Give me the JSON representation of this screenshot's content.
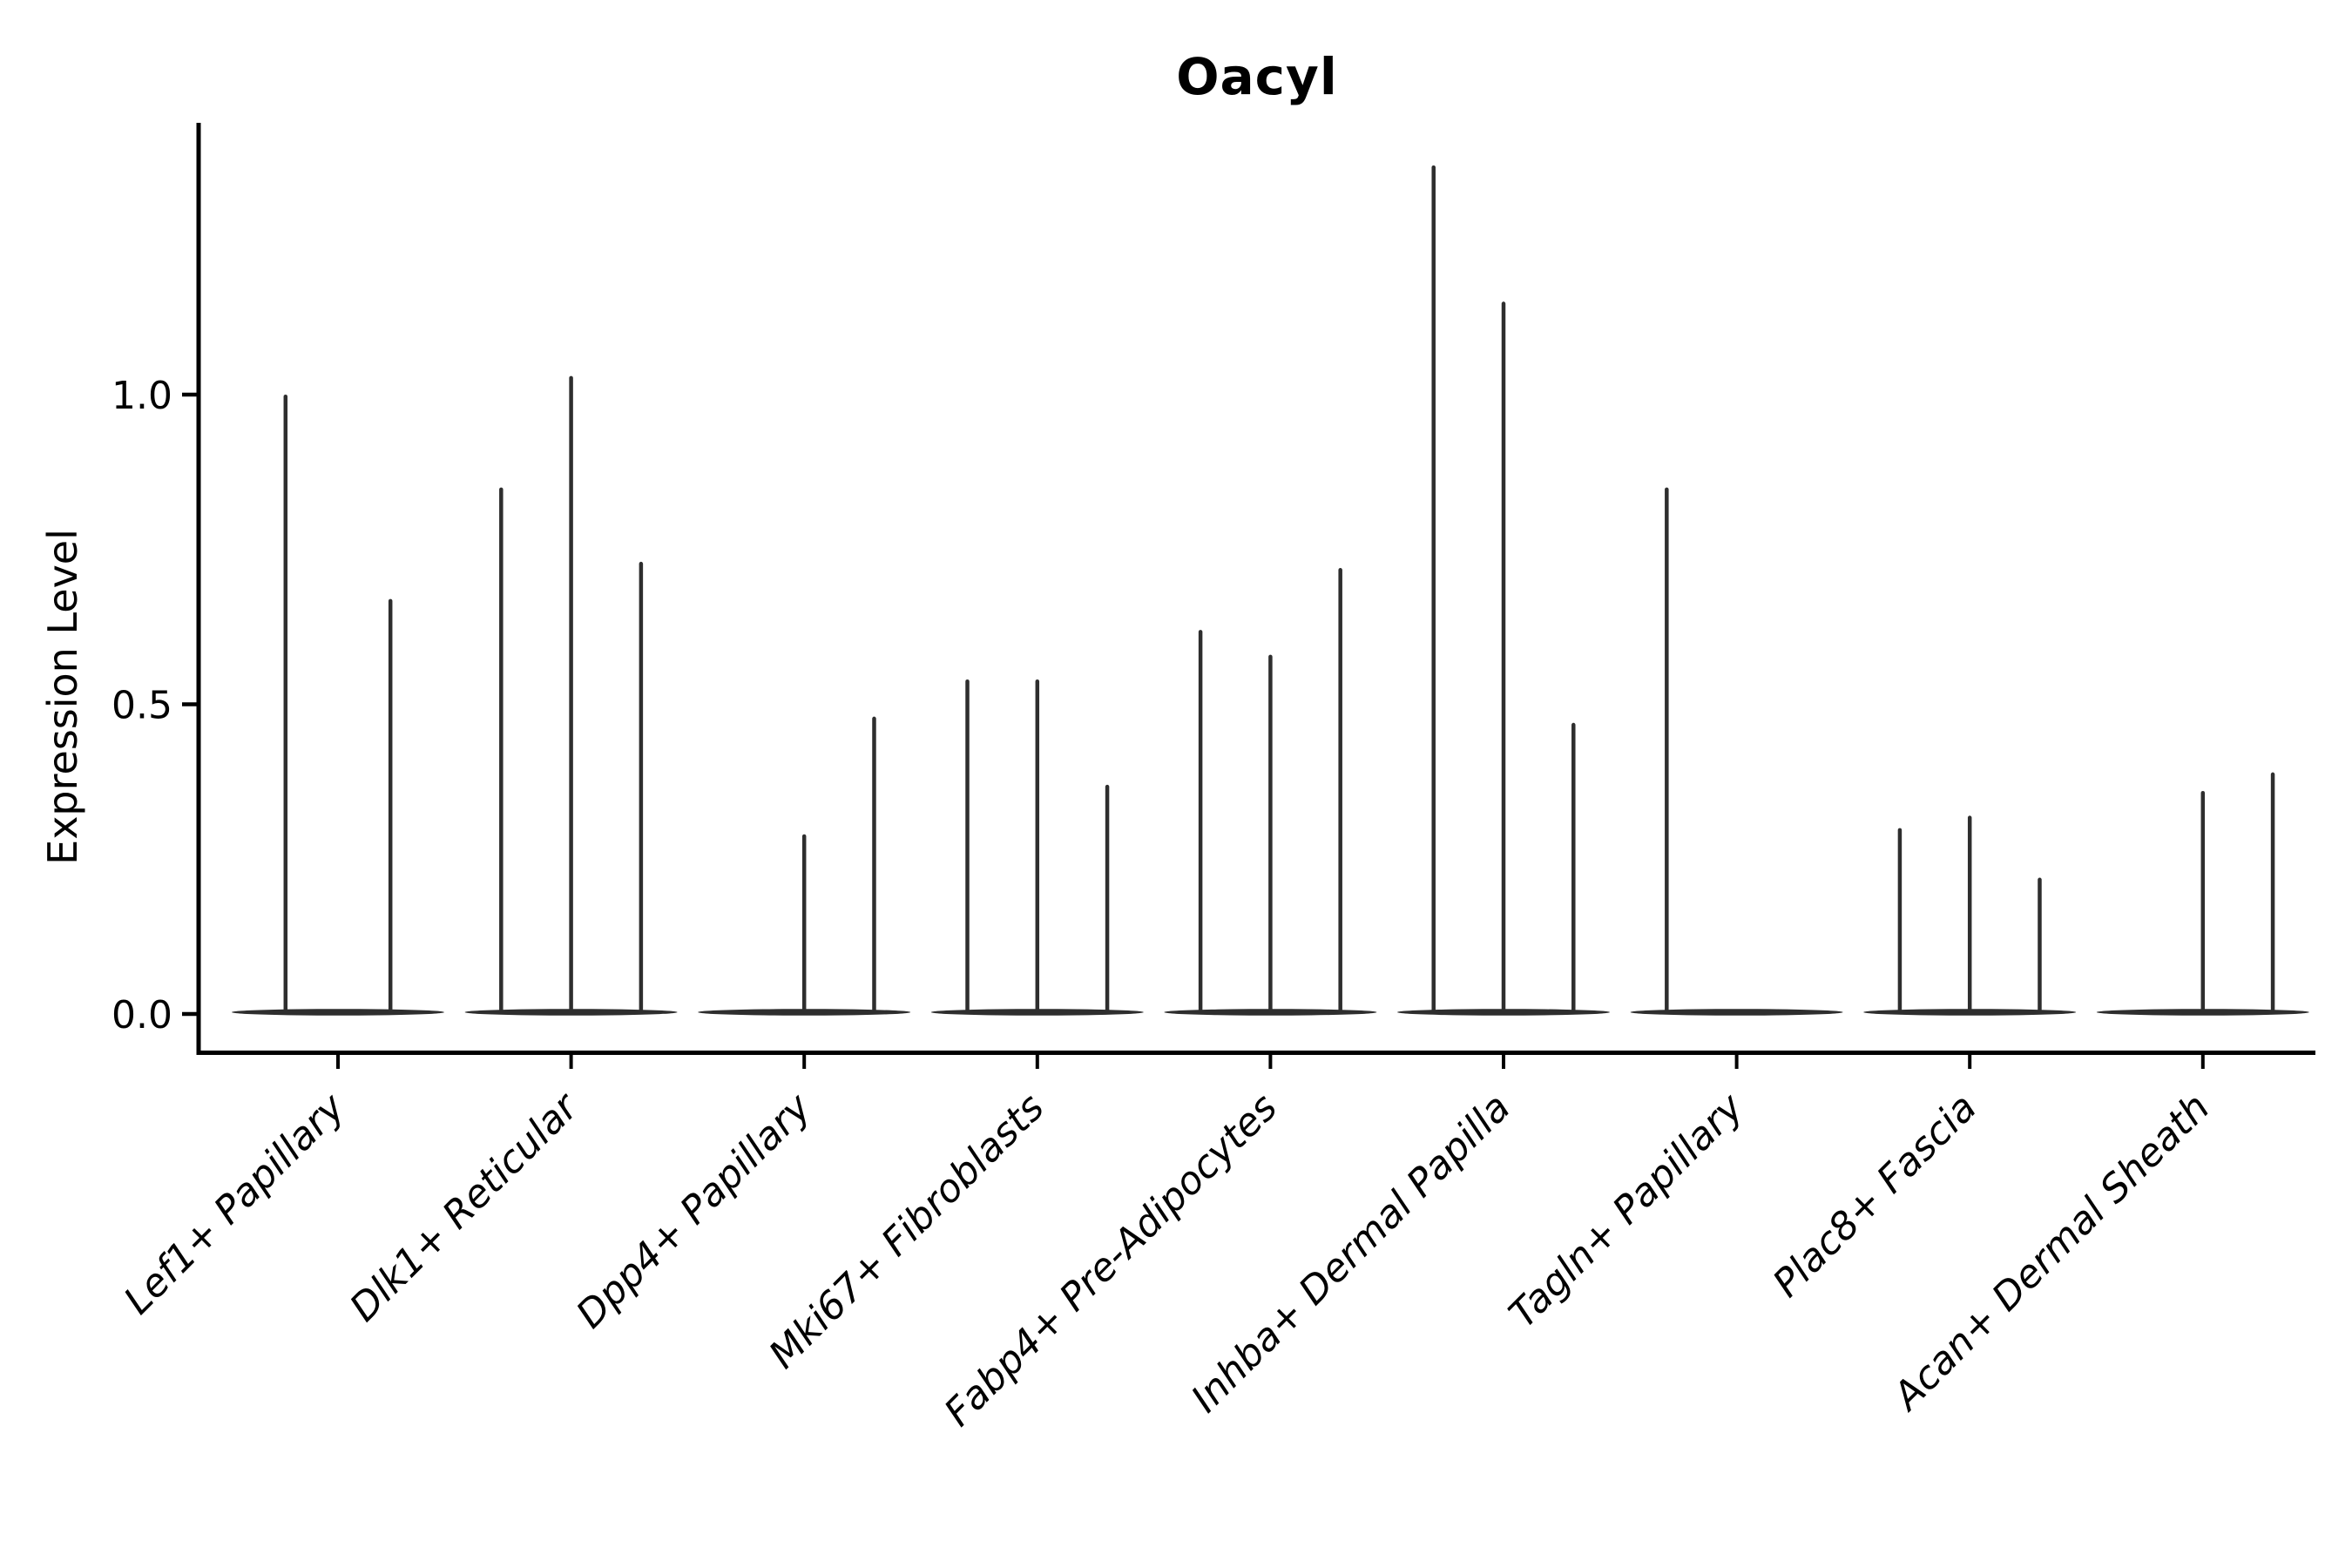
{
  "page": {
    "background": "#ffffff"
  },
  "style": {
    "violin_color": "#2e2e2e",
    "axis_color": "#000000",
    "text_color": "#000000"
  },
  "chart_data": {
    "type": "violin",
    "title": "Oacyl",
    "xlabel": "",
    "ylabel": "Expression Level",
    "ylim": [
      -0.07,
      1.44
    ],
    "yticks": [
      {
        "label": "0.0",
        "value": 0.0
      },
      {
        "label": "0.5",
        "value": 0.5
      },
      {
        "label": "1.0",
        "value": 1.0
      }
    ],
    "grid": false,
    "legend": "none",
    "violin_style": "each violin is flat at zero expression with a thin vertical spike up to its maximum value",
    "categories": [
      "Lef1+ Papillary",
      "Dlk1+ Reticular",
      "Dpp4+ Papillary",
      "Mki67+ Fibroblasts",
      "Fabp4+ Pre-Adipocytes",
      "Inhba+ Dermal Papilla",
      "Tagln+ Papillary",
      "Plac8+ Fascia",
      "Acan+ Dermal Sheath"
    ],
    "groups": [
      {
        "category": "Lef1+ Papillary",
        "violins": [
          {
            "slot": -0.225,
            "max": 1.0
          },
          {
            "slot": 0.225,
            "max": 0.67
          }
        ]
      },
      {
        "category": "Dlk1+ Reticular",
        "violins": [
          {
            "slot": -0.3,
            "max": 0.85
          },
          {
            "slot": 0,
            "max": 1.03
          },
          {
            "slot": 0.3,
            "max": 0.73
          }
        ]
      },
      {
        "category": "Dpp4+ Papillary",
        "violins": [
          {
            "slot": -0.3,
            "max": 0.0
          },
          {
            "slot": 0,
            "max": 0.29
          },
          {
            "slot": 0.3,
            "max": 0.48
          }
        ]
      },
      {
        "category": "Mki67+ Fibroblasts",
        "violins": [
          {
            "slot": -0.3,
            "max": 0.54
          },
          {
            "slot": 0,
            "max": 0.54
          },
          {
            "slot": 0.3,
            "max": 0.37
          }
        ]
      },
      {
        "category": "Fabp4+ Pre-Adipocytes",
        "violins": [
          {
            "slot": -0.3,
            "max": 0.62
          },
          {
            "slot": 0,
            "max": 0.58
          },
          {
            "slot": 0.3,
            "max": 0.72
          }
        ]
      },
      {
        "category": "Inhba+ Dermal Papilla",
        "violins": [
          {
            "slot": -0.3,
            "max": 1.37
          },
          {
            "slot": 0,
            "max": 1.15
          },
          {
            "slot": 0.3,
            "max": 0.47
          }
        ]
      },
      {
        "category": "Tagln+ Papillary",
        "violins": [
          {
            "slot": -0.3,
            "max": 0.85
          },
          {
            "slot": 0,
            "max": 0.0
          },
          {
            "slot": 0.3,
            "max": 0.0
          }
        ]
      },
      {
        "category": "Plac8+ Fascia",
        "violins": [
          {
            "slot": -0.3,
            "max": 0.3
          },
          {
            "slot": 0,
            "max": 0.32
          },
          {
            "slot": 0.3,
            "max": 0.22
          }
        ]
      },
      {
        "category": "Acan+ Dermal Sheath",
        "violins": [
          {
            "slot": -0.3,
            "max": 0.0
          },
          {
            "slot": 0,
            "max": 0.36
          },
          {
            "slot": 0.3,
            "max": 0.39
          }
        ]
      }
    ]
  }
}
